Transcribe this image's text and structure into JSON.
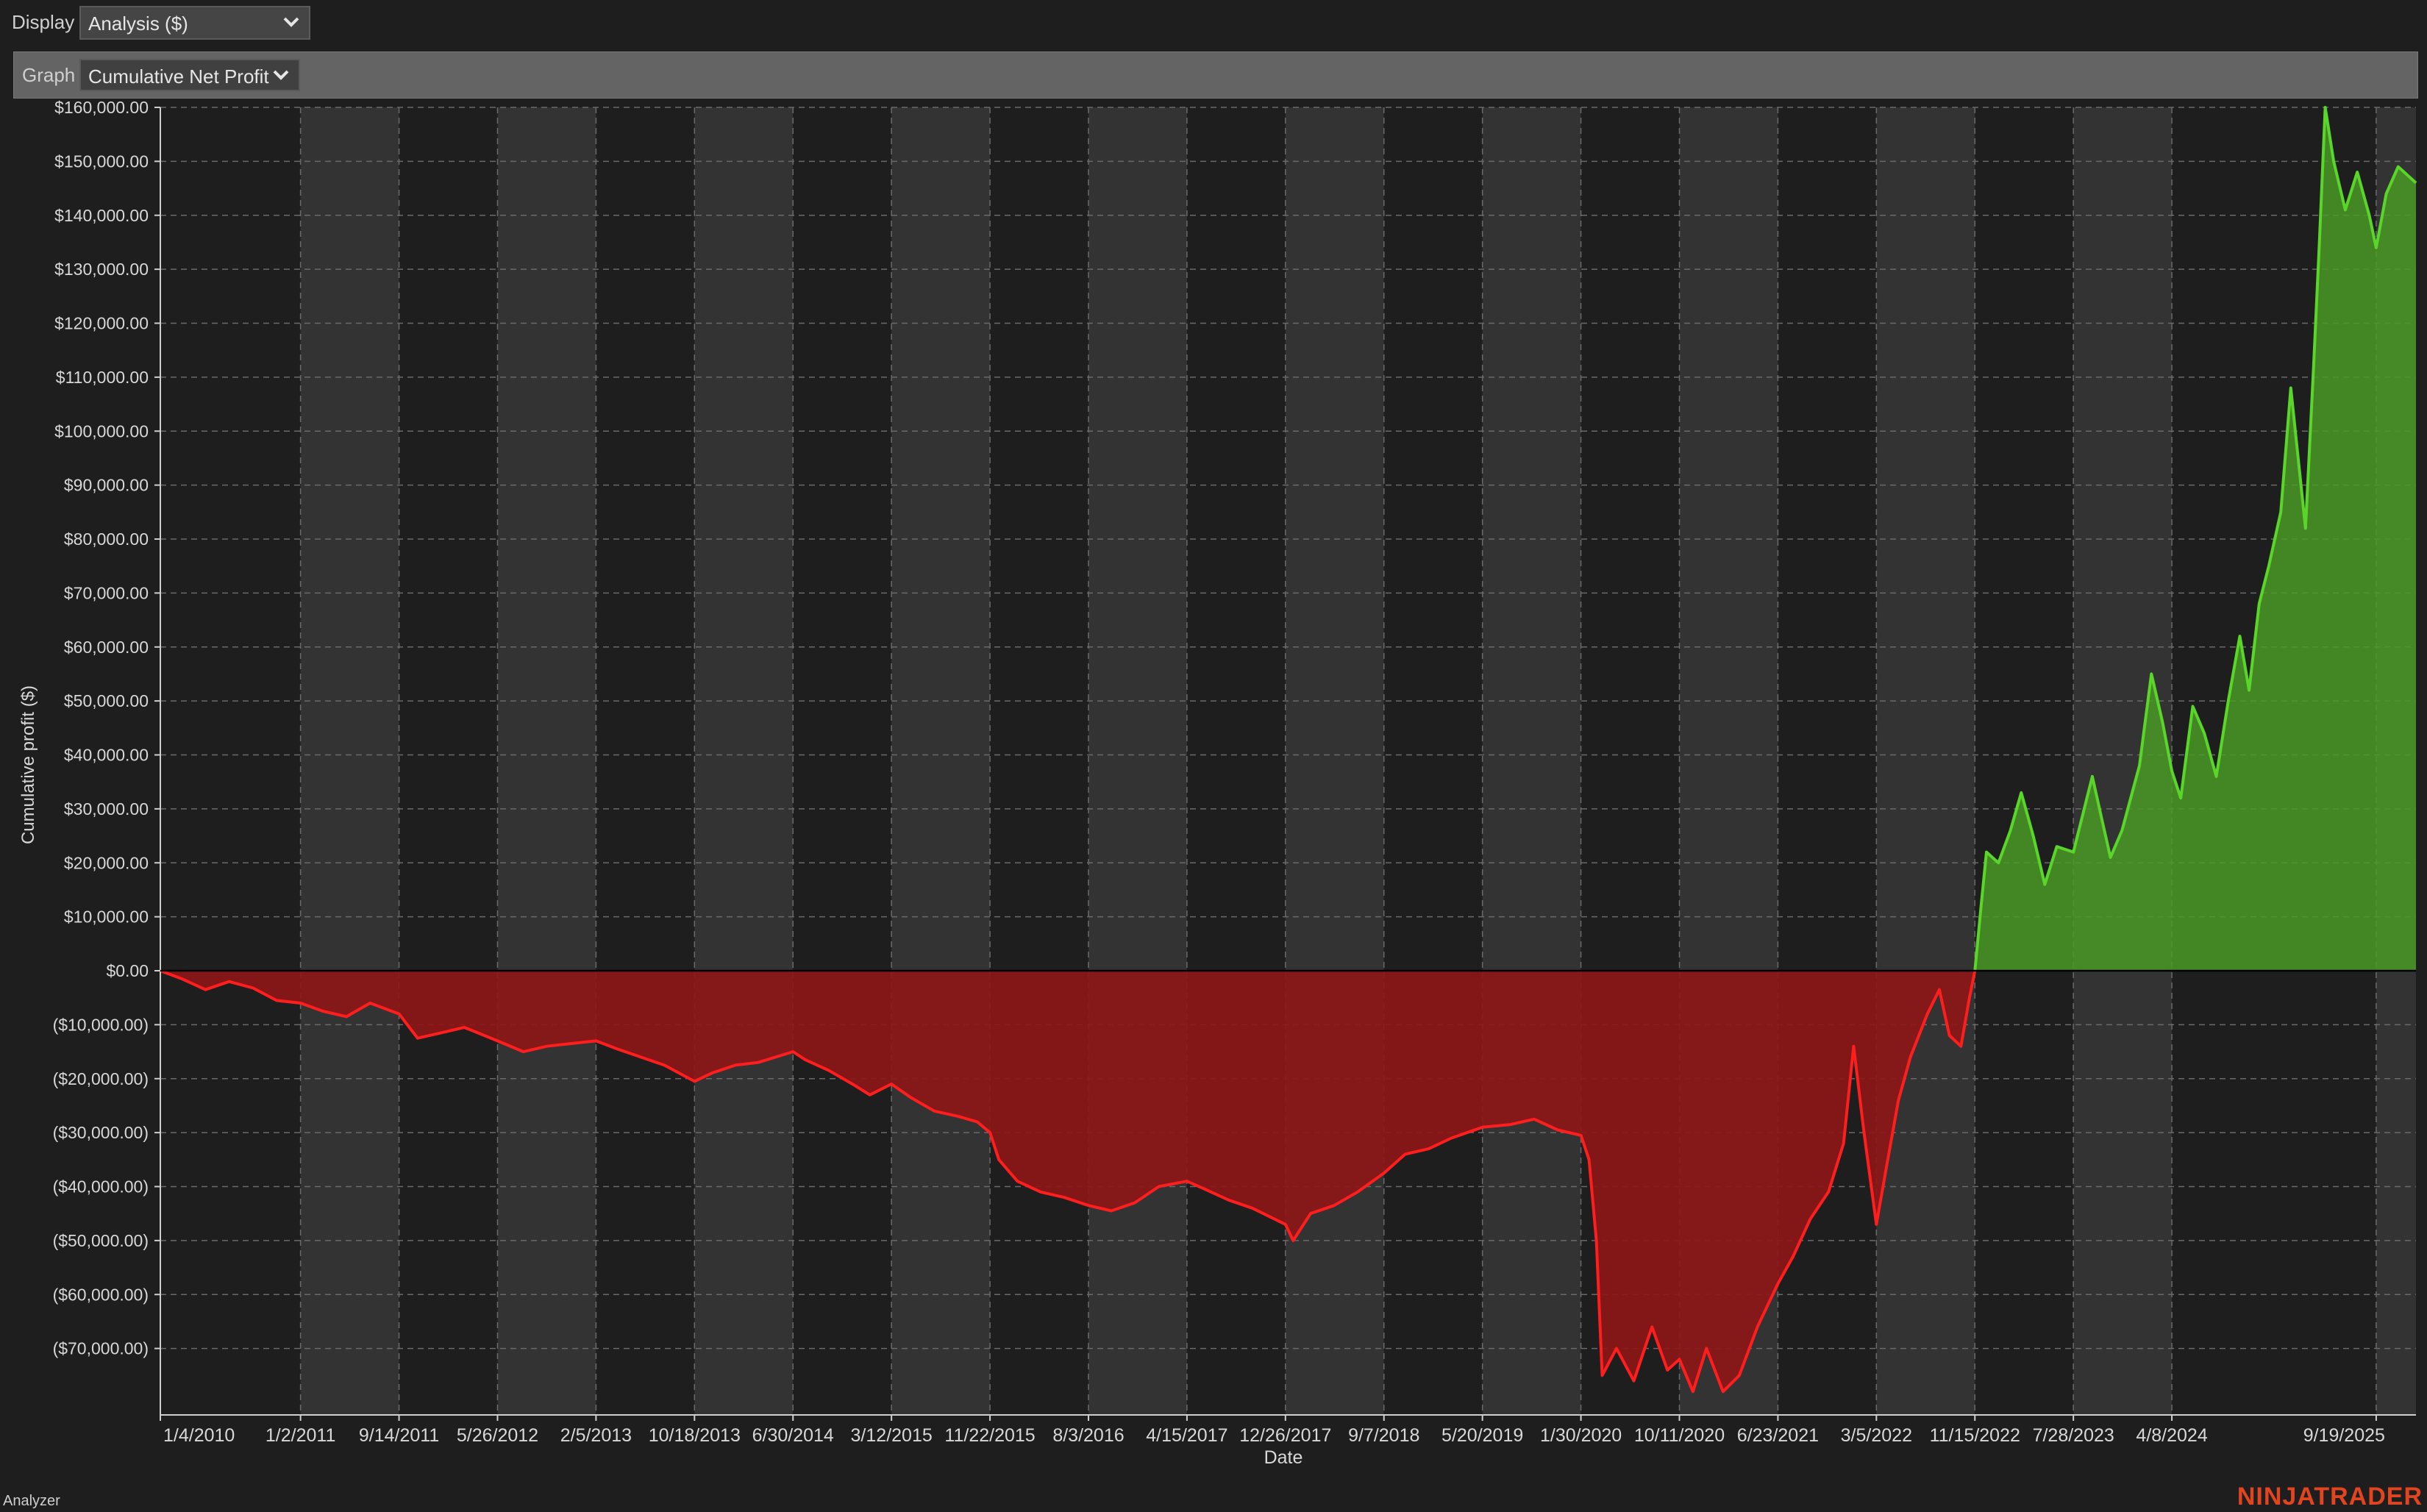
{
  "toolbar": {
    "display_label": "Display",
    "display_value": "Analysis ($)",
    "graph_label": "Graph",
    "graph_value": "Cumulative Net Profit"
  },
  "status": {
    "label": "Analyzer"
  },
  "brand": {
    "text": "NINJATRADER"
  },
  "colors": {
    "background": "#1e1e1e",
    "band": "#323332",
    "profit_line": "#5ad62a",
    "profit_fill": "#4a9a26",
    "loss_line": "#ff1e1e",
    "loss_fill": "#8e1515",
    "brand": "#e0451f"
  },
  "chart_data": {
    "type": "area",
    "title": "",
    "xlabel": "Date",
    "ylabel": "Cumulative profit ($)",
    "ylim": [
      -82000,
      160000
    ],
    "yticks": [
      160000,
      150000,
      140000,
      130000,
      120000,
      110000,
      100000,
      90000,
      80000,
      70000,
      60000,
      50000,
      40000,
      30000,
      20000,
      10000,
      0,
      -10000,
      -20000,
      -30000,
      -40000,
      -50000,
      -60000,
      -70000
    ],
    "ytick_labels": [
      "$160,000.00",
      "$150,000.00",
      "$140,000.00",
      "$130,000.00",
      "$120,000.00",
      "$110,000.00",
      "$100,000.00",
      "$90,000.00",
      "$80,000.00",
      "$70,000.00",
      "$60,000.00",
      "$50,000.00",
      "$40,000.00",
      "$30,000.00",
      "$20,000.00",
      "$10,000.00",
      "$0.00",
      "($10,000.00)",
      "($20,000.00)",
      "($30,000.00)",
      "($40,000.00)",
      "($50,000.00)",
      "($60,000.00)",
      "($70,000.00)"
    ],
    "xlim": [
      "2010-01-04",
      "2025-12-31"
    ],
    "xticks": [
      "1/4/2010",
      "1/2/2011",
      "9/14/2011",
      "5/26/2012",
      "2/5/2013",
      "10/18/2013",
      "6/30/2014",
      "3/12/2015",
      "11/22/2015",
      "8/3/2016",
      "4/15/2017",
      "12/26/2017",
      "9/7/2018",
      "5/20/2019",
      "1/30/2020",
      "10/11/2020",
      "6/23/2021",
      "3/5/2022",
      "11/15/2022",
      "7/28/2023",
      "4/8/2024",
      "9/19/2025"
    ],
    "grid": true,
    "legend": "none",
    "series": [
      {
        "points": [
          [
            "2010-01-04",
            0
          ],
          [
            "2010-03-01",
            -1500
          ],
          [
            "2010-05-01",
            -3500
          ],
          [
            "2010-07-01",
            -2000
          ],
          [
            "2010-09-01",
            -3200
          ],
          [
            "2010-11-01",
            -5500
          ],
          [
            "2011-01-02",
            -6000
          ],
          [
            "2011-03-01",
            -7500
          ],
          [
            "2011-05-01",
            -8500
          ],
          [
            "2011-07-01",
            -6000
          ],
          [
            "2011-09-14",
            -8000
          ],
          [
            "2011-11-01",
            -12500
          ],
          [
            "2012-01-01",
            -11500
          ],
          [
            "2012-03-01",
            -10500
          ],
          [
            "2012-05-26",
            -13000
          ],
          [
            "2012-08-01",
            -15000
          ],
          [
            "2012-10-01",
            -14000
          ],
          [
            "2012-12-01",
            -13500
          ],
          [
            "2013-02-05",
            -13000
          ],
          [
            "2013-04-01",
            -14500
          ],
          [
            "2013-06-01",
            -16000
          ],
          [
            "2013-08-01",
            -17500
          ],
          [
            "2013-10-18",
            -20500
          ],
          [
            "2013-12-01",
            -19000
          ],
          [
            "2014-02-01",
            -17500
          ],
          [
            "2014-04-01",
            -17000
          ],
          [
            "2014-06-30",
            -15000
          ],
          [
            "2014-08-01",
            -16500
          ],
          [
            "2014-10-01",
            -18500
          ],
          [
            "2014-12-01",
            -21000
          ],
          [
            "2015-01-15",
            -23000
          ],
          [
            "2015-03-12",
            -21000
          ],
          [
            "2015-05-01",
            -23500
          ],
          [
            "2015-07-01",
            -26000
          ],
          [
            "2015-09-01",
            -27000
          ],
          [
            "2015-10-20",
            -28000
          ],
          [
            "2015-11-22",
            -30000
          ],
          [
            "2015-12-15",
            -35000
          ],
          [
            "2016-02-01",
            -39000
          ],
          [
            "2016-04-01",
            -41000
          ],
          [
            "2016-06-01",
            -42000
          ],
          [
            "2016-08-03",
            -43500
          ],
          [
            "2016-10-01",
            -44500
          ],
          [
            "2016-12-01",
            -43000
          ],
          [
            "2017-02-01",
            -40000
          ],
          [
            "2017-04-15",
            -39000
          ],
          [
            "2017-06-01",
            -40500
          ],
          [
            "2017-08-01",
            -42500
          ],
          [
            "2017-10-01",
            -44000
          ],
          [
            "2017-12-26",
            -47000
          ],
          [
            "2018-01-15",
            -50000
          ],
          [
            "2018-03-01",
            -45000
          ],
          [
            "2018-05-01",
            -43500
          ],
          [
            "2018-07-01",
            -41000
          ],
          [
            "2018-09-07",
            -37500
          ],
          [
            "2018-11-01",
            -34000
          ],
          [
            "2019-01-01",
            -33000
          ],
          [
            "2019-03-01",
            -31000
          ],
          [
            "2019-05-20",
            -29000
          ],
          [
            "2019-08-01",
            -28500
          ],
          [
            "2019-10-01",
            -27500
          ],
          [
            "2019-12-01",
            -29500
          ],
          [
            "2020-01-30",
            -30500
          ],
          [
            "2020-02-20",
            -35000
          ],
          [
            "2020-03-10",
            -50000
          ],
          [
            "2020-03-25",
            -75000
          ],
          [
            "2020-05-01",
            -70000
          ],
          [
            "2020-06-15",
            -76000
          ],
          [
            "2020-08-01",
            -66000
          ],
          [
            "2020-09-10",
            -74000
          ],
          [
            "2020-10-11",
            -72000
          ],
          [
            "2020-11-15",
            -78000
          ],
          [
            "2020-12-20",
            -70000
          ],
          [
            "2021-02-01",
            -78000
          ],
          [
            "2021-03-15",
            -75000
          ],
          [
            "2021-05-01",
            -66000
          ],
          [
            "2021-06-23",
            -58000
          ],
          [
            "2021-08-01",
            -53000
          ],
          [
            "2021-09-15",
            -46000
          ],
          [
            "2021-11-01",
            -41000
          ],
          [
            "2021-12-10",
            -32000
          ],
          [
            "2022-01-05",
            -14000
          ],
          [
            "2022-02-01",
            -30000
          ],
          [
            "2022-03-05",
            -47000
          ],
          [
            "2022-04-01",
            -36000
          ],
          [
            "2022-05-01",
            -24000
          ],
          [
            "2022-06-01",
            -16000
          ],
          [
            "2022-07-15",
            -8000
          ],
          [
            "2022-08-15",
            -3500
          ],
          [
            "2022-09-10",
            -12000
          ],
          [
            "2022-10-10",
            -14000
          ],
          [
            "2022-11-01",
            -5000
          ],
          [
            "2022-11-15",
            0
          ],
          [
            "2022-12-01",
            12000
          ],
          [
            "2022-12-15",
            22000
          ],
          [
            "2023-01-15",
            20000
          ],
          [
            "2023-02-15",
            26000
          ],
          [
            "2023-03-15",
            33000
          ],
          [
            "2023-04-15",
            25000
          ],
          [
            "2023-05-15",
            16000
          ],
          [
            "2023-06-15",
            23000
          ],
          [
            "2023-07-28",
            22000
          ],
          [
            "2023-08-25",
            30000
          ],
          [
            "2023-09-15",
            36000
          ],
          [
            "2023-10-10",
            28000
          ],
          [
            "2023-11-01",
            21000
          ],
          [
            "2023-12-01",
            26000
          ],
          [
            "2024-01-15",
            38000
          ],
          [
            "2024-02-15",
            55000
          ],
          [
            "2024-03-15",
            46000
          ],
          [
            "2024-04-08",
            37000
          ],
          [
            "2024-05-01",
            32000
          ],
          [
            "2024-06-01",
            49000
          ],
          [
            "2024-07-01",
            44000
          ],
          [
            "2024-08-01",
            36000
          ],
          [
            "2024-09-01",
            50000
          ],
          [
            "2024-10-01",
            62000
          ],
          [
            "2024-10-25",
            52000
          ],
          [
            "2024-11-20",
            68000
          ],
          [
            "2024-12-15",
            75000
          ],
          [
            "2025-01-15",
            85000
          ],
          [
            "2025-02-10",
            108000
          ],
          [
            "2025-03-01",
            95000
          ],
          [
            "2025-03-20",
            82000
          ],
          [
            "2025-04-10",
            112000
          ],
          [
            "2025-04-25",
            135000
          ],
          [
            "2025-05-10",
            160000
          ],
          [
            "2025-06-01",
            150000
          ],
          [
            "2025-07-01",
            141000
          ],
          [
            "2025-08-01",
            148000
          ],
          [
            "2025-09-01",
            140000
          ],
          [
            "2025-09-19",
            134000
          ],
          [
            "2025-10-15",
            144000
          ],
          [
            "2025-11-15",
            149000
          ],
          [
            "2025-12-31",
            146000
          ]
        ]
      }
    ]
  }
}
